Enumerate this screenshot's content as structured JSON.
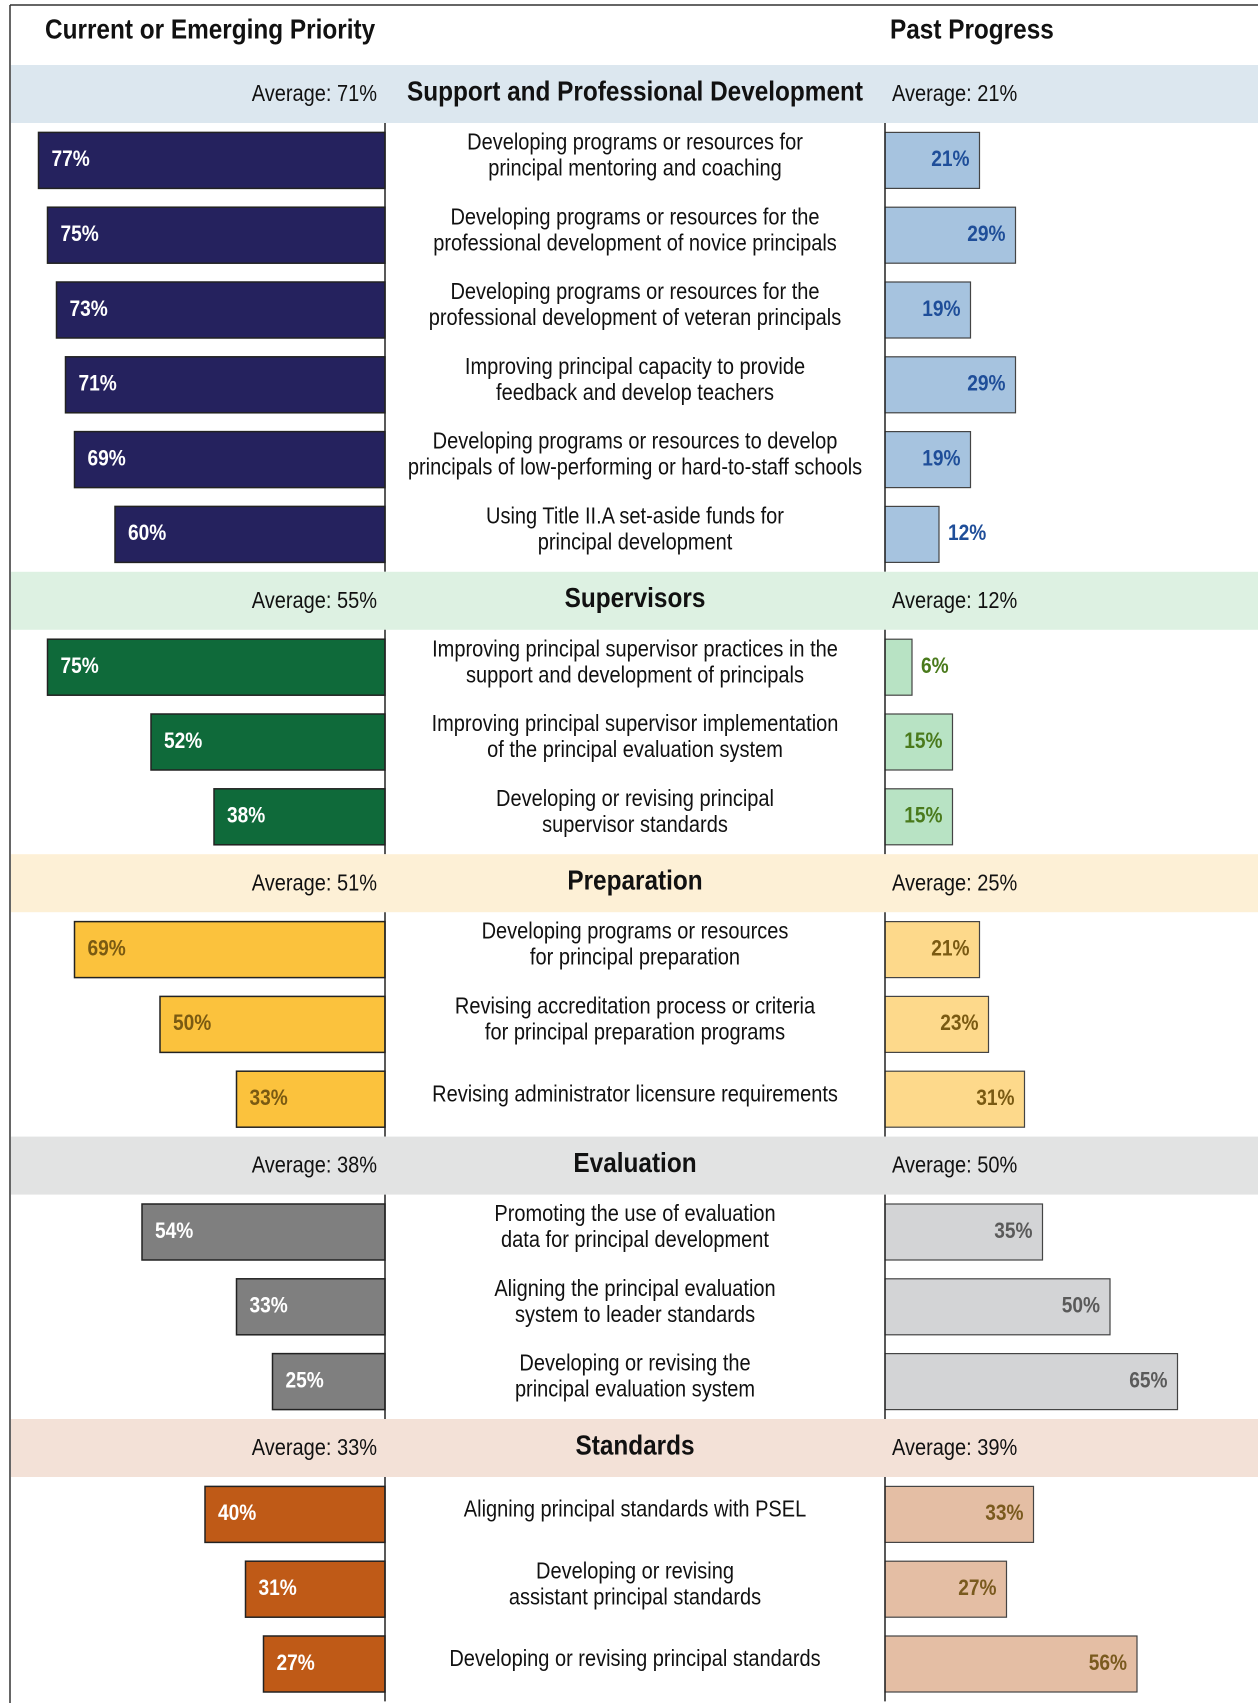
{
  "chart_data": {
    "type": "diverging_bar",
    "priority_title": "Current or Emerging Priority",
    "progress_title": "Past Progress",
    "groups": [
      {
        "name": "Support and Professional Development",
        "priority_average": "Average: 71%",
        "progress_average": "Average: 21%",
        "band_color": "#dce7ef",
        "categories": [
          [
            "Developing programs or resources for",
            "principal mentoring and coaching"
          ],
          [
            "Developing programs or resources for the",
            "professional development of novice principals"
          ],
          [
            "Developing programs or resources for the",
            "professional development of veteran principals"
          ],
          [
            "Improving principal capacity to provide",
            "feedback and develop teachers"
          ],
          [
            "Developing programs or resources to develop",
            "principals of low-performing or hard-to-staff schools"
          ],
          [
            "Using Title II.A set-aside funds for",
            "principal development"
          ]
        ],
        "priority": {
          "color": "#25225e",
          "label_color": "#ffffff",
          "values": [
            77,
            75,
            73,
            71,
            69,
            60
          ],
          "value_labels": [
            "77%",
            "75%",
            "73%",
            "71%",
            "69%",
            "60%"
          ]
        },
        "progress": {
          "color": "#a6c3df",
          "label_color": "#1f4e99",
          "values": [
            21,
            29,
            19,
            29,
            19,
            12
          ],
          "value_labels": [
            "21%",
            "29%",
            "19%",
            "29%",
            "19%",
            "12%"
          ]
        }
      },
      {
        "name": "Supervisors",
        "priority_average": "Average: 55%",
        "progress_average": "Average: 12%",
        "band_color": "#ddf1e2",
        "categories": [
          [
            "Improving principal supervisor practices in the",
            "support and development of principals"
          ],
          [
            "Improving principal supervisor implementation",
            "of the principal evaluation system"
          ],
          [
            "Developing or revising principal",
            "supervisor standards"
          ]
        ],
        "priority": {
          "color": "#0f6a3a",
          "label_color": "#ffffff",
          "values": [
            75,
            52,
            38
          ],
          "value_labels": [
            "75%",
            "52%",
            "38%"
          ]
        },
        "progress": {
          "color": "#b8e3c4",
          "label_color": "#4a7a1c",
          "values": [
            6,
            15,
            15
          ],
          "value_labels": [
            "6%",
            "15%",
            "15%"
          ]
        }
      },
      {
        "name": "Preparation",
        "priority_average": "Average: 51%",
        "progress_average": "Average: 25%",
        "band_color": "#fdf0d6",
        "categories": [
          [
            "Developing programs or resources",
            "for principal preparation"
          ],
          [
            "Revising accreditation process or criteria",
            "for principal preparation programs"
          ],
          [
            "Revising administrator licensure requirements"
          ]
        ],
        "priority": {
          "color": "#fbc23d",
          "label_color": "#7a5a12",
          "values": [
            69,
            50,
            33
          ],
          "value_labels": [
            "69%",
            "50%",
            "33%"
          ]
        },
        "progress": {
          "color": "#fdd98b",
          "label_color": "#7a5a12",
          "values": [
            21,
            23,
            31
          ],
          "value_labels": [
            "21%",
            "23%",
            "31%"
          ]
        }
      },
      {
        "name": "Evaluation",
        "priority_average": "Average: 38%",
        "progress_average": "Average: 50%",
        "band_color": "#e2e3e3",
        "categories": [
          [
            "Promoting the use of evaluation",
            "data for principal development"
          ],
          [
            "Aligning the principal evaluation",
            "system to leader standards"
          ],
          [
            "Developing or revising the",
            "principal evaluation system"
          ]
        ],
        "priority": {
          "color": "#7f7f7f",
          "label_color": "#ffffff",
          "values": [
            54,
            33,
            25
          ],
          "value_labels": [
            "54%",
            "33%",
            "25%"
          ]
        },
        "progress": {
          "color": "#d3d4d6",
          "label_color": "#5a5a5a",
          "values": [
            35,
            50,
            65
          ],
          "value_labels": [
            "35%",
            "50%",
            "65%"
          ]
        }
      },
      {
        "name": "Standards",
        "priority_average": "Average: 33%",
        "progress_average": "Average: 39%",
        "band_color": "#f3e1d7",
        "categories": [
          [
            "Aligning principal standards with PSEL"
          ],
          [
            "Developing or revising",
            "assistant principal standards"
          ],
          [
            "Developing or revising principal standards"
          ]
        ],
        "priority": {
          "color": "#bf5a17",
          "label_color": "#ffffff",
          "values": [
            40,
            31,
            27
          ],
          "value_labels": [
            "40%",
            "31%",
            "27%"
          ]
        },
        "progress": {
          "color": "#e4bea4",
          "label_color": "#7a5a1e",
          "values": [
            33,
            27,
            56
          ],
          "value_labels": [
            "33%",
            "27%",
            "56%"
          ]
        }
      }
    ]
  }
}
